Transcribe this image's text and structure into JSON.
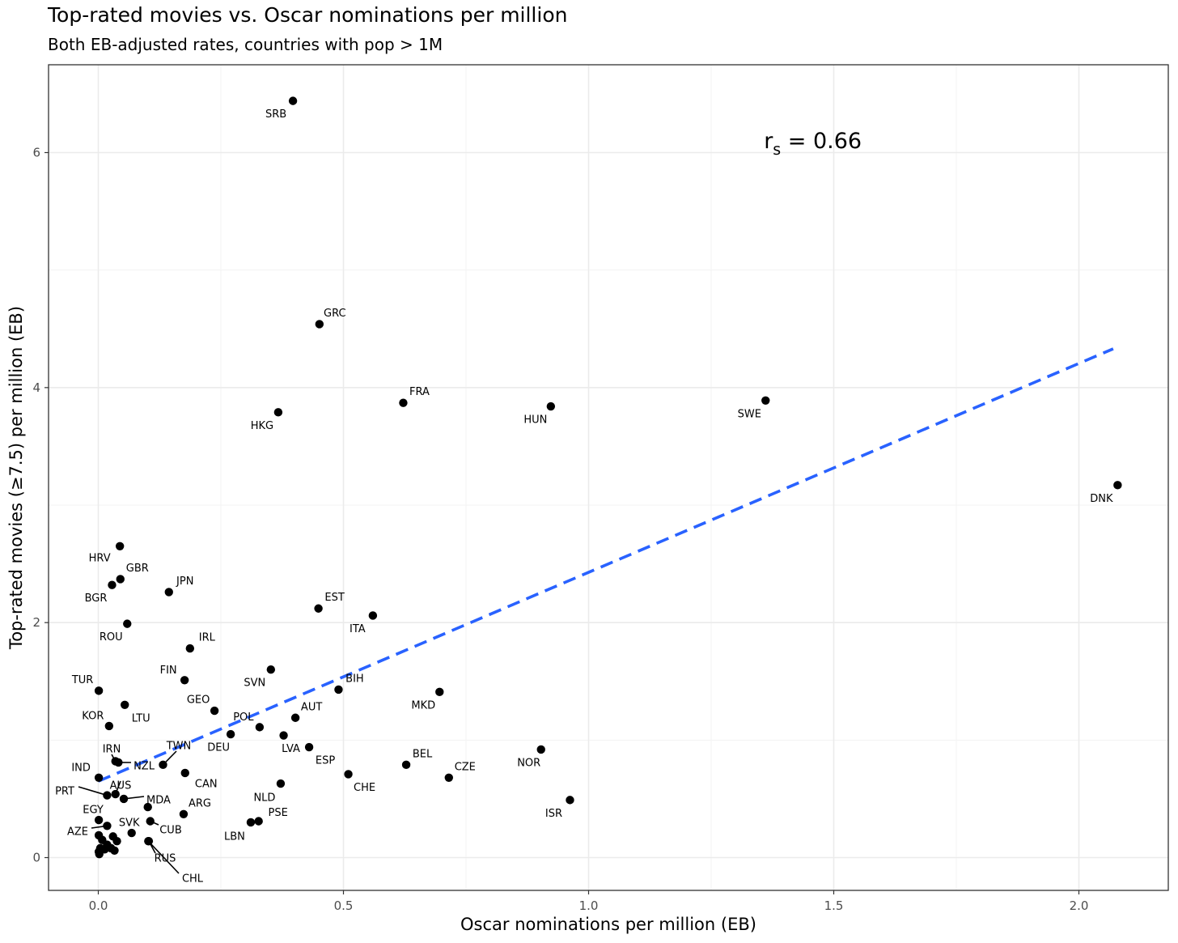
{
  "chart_data": {
    "type": "scatter",
    "title": "Top-rated movies vs. Oscar nominations per million",
    "subtitle": "Both EB-adjusted rates, countries with pop > 1M",
    "xlabel": "Oscar nominations per million (EB)",
    "ylabel": "Top-rated movies (≥7.5) per million (EB)",
    "xlim": [
      -0.1,
      2.18
    ],
    "ylim": [
      -0.28,
      6.75
    ],
    "x_ticks": [
      0.0,
      0.5,
      1.0,
      1.5,
      2.0
    ],
    "x_tick_labels": [
      "0.0",
      "0.5",
      "1.0",
      "1.5",
      "2.0"
    ],
    "y_ticks": [
      0,
      2,
      4,
      6
    ],
    "y_tick_labels": [
      "0",
      "2",
      "4",
      "6"
    ],
    "grid": true,
    "annotation": {
      "text_main": "r",
      "text_sub": "s",
      "text_rest": " = 0.66",
      "x": 1.45,
      "y": 6.12
    },
    "trend_line": {
      "style": "dashed",
      "color": "#2962FF",
      "x": [
        0.0,
        2.07
      ],
      "y": [
        0.65,
        4.33
      ]
    },
    "points": [
      {
        "label": "SRB",
        "x": 0.397,
        "y": 6.44
      },
      {
        "label": "GRC",
        "x": 0.451,
        "y": 4.54
      },
      {
        "label": "FRA",
        "x": 0.622,
        "y": 3.87
      },
      {
        "label": "HUN",
        "x": 0.923,
        "y": 3.84
      },
      {
        "label": "SWE",
        "x": 1.361,
        "y": 3.89
      },
      {
        "label": "HKG",
        "x": 0.367,
        "y": 3.79
      },
      {
        "label": "DNK",
        "x": 2.079,
        "y": 3.17
      },
      {
        "label": "HRV",
        "x": 0.044,
        "y": 2.65
      },
      {
        "label": "GBR",
        "x": 0.045,
        "y": 2.37
      },
      {
        "label": "BGR",
        "x": 0.028,
        "y": 2.32
      },
      {
        "label": "JPN",
        "x": 0.144,
        "y": 2.26
      },
      {
        "label": "EST",
        "x": 0.449,
        "y": 2.12
      },
      {
        "label": "ITA",
        "x": 0.56,
        "y": 2.06
      },
      {
        "label": "ROU",
        "x": 0.059,
        "y": 1.99
      },
      {
        "label": "IRL",
        "x": 0.187,
        "y": 1.78
      },
      {
        "label": "SVN",
        "x": 0.352,
        "y": 1.6
      },
      {
        "label": "FIN",
        "x": 0.176,
        "y": 1.51
      },
      {
        "label": "BIH",
        "x": 0.49,
        "y": 1.43
      },
      {
        "label": "MKD",
        "x": 0.696,
        "y": 1.41
      },
      {
        "label": "TUR",
        "x": 0.001,
        "y": 1.42
      },
      {
        "label": "LTU",
        "x": 0.054,
        "y": 1.3
      },
      {
        "label": "GEO",
        "x": 0.237,
        "y": 1.25
      },
      {
        "label": "AUT",
        "x": 0.402,
        "y": 1.19
      },
      {
        "label": "KOR",
        "x": 0.022,
        "y": 1.12
      },
      {
        "label": "POL",
        "x": 0.329,
        "y": 1.11
      },
      {
        "label": "DEU",
        "x": 0.27,
        "y": 1.05
      },
      {
        "label": "LVA",
        "x": 0.378,
        "y": 1.04
      },
      {
        "label": "ESP",
        "x": 0.43,
        "y": 0.94
      },
      {
        "label": "NOR",
        "x": 0.903,
        "y": 0.92
      },
      {
        "label": "IRN",
        "x": 0.035,
        "y": 0.82
      },
      {
        "label": "NZL",
        "x": 0.041,
        "y": 0.81
      },
      {
        "label": "TWN",
        "x": 0.132,
        "y": 0.79
      },
      {
        "label": "BEL",
        "x": 0.628,
        "y": 0.79
      },
      {
        "label": "CAN",
        "x": 0.177,
        "y": 0.72
      },
      {
        "label": "CHE",
        "x": 0.51,
        "y": 0.71
      },
      {
        "label": "CZE",
        "x": 0.715,
        "y": 0.68
      },
      {
        "label": "IND",
        "x": 0.001,
        "y": 0.68
      },
      {
        "label": "NLD",
        "x": 0.372,
        "y": 0.63
      },
      {
        "label": "AUS",
        "x": 0.035,
        "y": 0.54
      },
      {
        "label": "PRT",
        "x": 0.018,
        "y": 0.53
      },
      {
        "label": "MDA",
        "x": 0.052,
        "y": 0.5
      },
      {
        "label": "ISR",
        "x": 0.962,
        "y": 0.49
      },
      {
        "label": "ARG",
        "x": 0.174,
        "y": 0.37
      },
      {
        "label": "EGY",
        "x": 0.001,
        "y": 0.32
      },
      {
        "label": "CUB",
        "x": 0.106,
        "y": 0.31
      },
      {
        "label": "PSE",
        "x": 0.327,
        "y": 0.31
      },
      {
        "label": "LBN",
        "x": 0.311,
        "y": 0.3
      },
      {
        "label": "AZE",
        "x": 0.018,
        "y": 0.27
      },
      {
        "label": "SVK",
        "x": 0.068,
        "y": 0.21
      },
      {
        "label": "RUS",
        "x": 0.103,
        "y": 0.14
      },
      {
        "label": "CHL",
        "x": 0.102,
        "y": 0.14
      },
      {
        "label": "",
        "x": 0.101,
        "y": 0.43
      },
      {
        "label": "",
        "x": 0.001,
        "y": 0.19
      },
      {
        "label": "",
        "x": 0.03,
        "y": 0.18
      },
      {
        "label": "",
        "x": 0.008,
        "y": 0.15
      },
      {
        "label": "",
        "x": 0.038,
        "y": 0.14
      },
      {
        "label": "",
        "x": 0.018,
        "y": 0.11
      },
      {
        "label": "",
        "x": 0.004,
        "y": 0.08
      },
      {
        "label": "",
        "x": 0.026,
        "y": 0.08
      },
      {
        "label": "",
        "x": 0.013,
        "y": 0.07
      },
      {
        "label": "",
        "x": 0.033,
        "y": 0.06
      },
      {
        "label": "",
        "x": 0.001,
        "y": 0.05
      },
      {
        "label": "",
        "x": 0.002,
        "y": 0.03
      }
    ]
  }
}
